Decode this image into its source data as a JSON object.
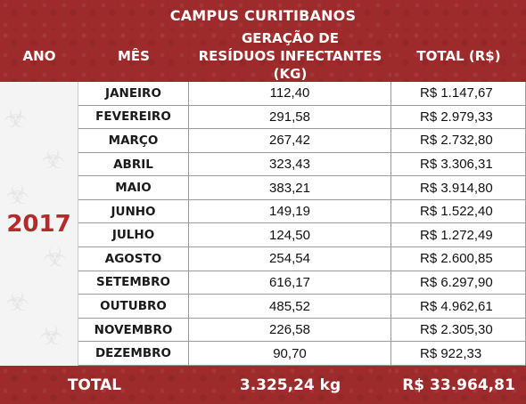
{
  "title": "CAMPUS CURITIBANOS",
  "headers": {
    "year": "ANO",
    "month": "MÊS",
    "waste_line1": "GERAÇÃO DE",
    "waste_line2": "RESÍDUOS INFECTANTES (KG)",
    "total": "TOTAL (R$)"
  },
  "year": "2017",
  "rows": [
    {
      "month": "JANEIRO",
      "kg": "112,40",
      "total": "R$  1.147,67"
    },
    {
      "month": "FEVEREIRO",
      "kg": "291,58",
      "total": "R$  2.979,33"
    },
    {
      "month": "MARÇO",
      "kg": "267,42",
      "total": "R$  2.732,80"
    },
    {
      "month": "ABRIL",
      "kg": "323,43",
      "total": "R$  3.306,31"
    },
    {
      "month": "MAIO",
      "kg": "383,21",
      "total": "R$  3.914,80"
    },
    {
      "month": "JUNHO",
      "kg": "149,19",
      "total": "R$  1.522,40"
    },
    {
      "month": "JULHO",
      "kg": "124,50",
      "total": "R$  1.272,49"
    },
    {
      "month": "AGOSTO",
      "kg": "254,54",
      "total": "R$  2.600,85"
    },
    {
      "month": "SETEMBRO",
      "kg": "616,17",
      "total": "R$  6.297,90"
    },
    {
      "month": "OUTUBRO",
      "kg": "485,52",
      "total": "R$  4.962,61"
    },
    {
      "month": "NOVEMBRO",
      "kg": "226,58",
      "total": "R$  2.305,30"
    },
    {
      "month": "DEZEMBRO",
      "kg": "90,70",
      "total": "R$  922,33"
    }
  ],
  "footer": {
    "label": "TOTAL",
    "kg": "3.325,24 kg",
    "total": "R$ 33.964,81"
  },
  "colors": {
    "header_red": "#9e2b2b",
    "year_red": "#b52a2a"
  }
}
